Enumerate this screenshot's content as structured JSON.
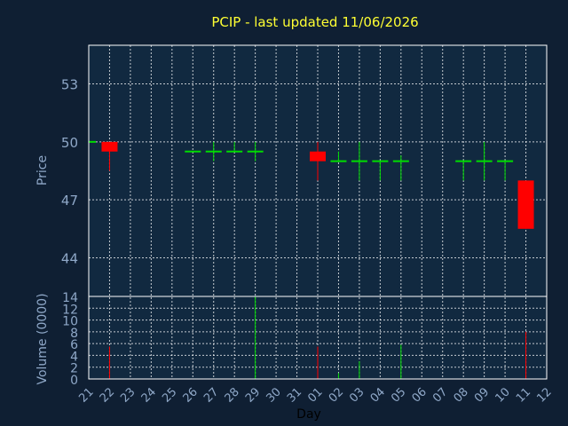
{
  "chart_data": {
    "type": "candlestick",
    "title": "PCIP - last updated 11/06/2026",
    "xlabel": "Day",
    "price_axis": {
      "label": "Price",
      "ylim": [
        42,
        55
      ],
      "ticks": [
        44,
        47,
        50,
        53
      ]
    },
    "volume_axis": {
      "label": "Volume (0000)",
      "ylim": [
        0,
        14
      ],
      "ticks": [
        0,
        2,
        4,
        6,
        8,
        10,
        12,
        14
      ]
    },
    "x_ticks": [
      "21",
      "22",
      "23",
      "24",
      "25",
      "26",
      "27",
      "28",
      "29",
      "30",
      "31",
      "01",
      "02",
      "03",
      "04",
      "05",
      "06",
      "07",
      "08",
      "09",
      "10",
      "11",
      "12"
    ],
    "grid": true,
    "colors": {
      "up": "#00dd00",
      "down": "#ff0000",
      "title": "#ffff33",
      "axis_text": "#8fa8c8",
      "background": "#0f1f33",
      "plot": "#112940"
    },
    "candles": [
      {
        "day": "21",
        "open": 50,
        "high": 50,
        "low": 50,
        "close": 50,
        "volume": 0
      },
      {
        "day": "22",
        "open": 50,
        "high": 50,
        "low": 48.5,
        "close": 49.5,
        "volume": 5.5
      },
      {
        "day": "26",
        "open": 49.5,
        "high": 49.5,
        "low": 49.5,
        "close": 49.5,
        "volume": 0
      },
      {
        "day": "27",
        "open": 49.5,
        "high": 50,
        "low": 49,
        "close": 49.5,
        "volume": 0
      },
      {
        "day": "28",
        "open": 49.5,
        "high": 50,
        "low": 49.5,
        "close": 49.5,
        "volume": 0
      },
      {
        "day": "29",
        "open": 49.5,
        "high": 50,
        "low": 49,
        "close": 49.5,
        "volume": 14
      },
      {
        "day": "01",
        "open": 49.5,
        "high": 50,
        "low": 48,
        "close": 49,
        "volume": 5.5
      },
      {
        "day": "02",
        "open": 49,
        "high": 49.5,
        "low": 49,
        "close": 49,
        "volume": 1
      },
      {
        "day": "03",
        "open": 49,
        "high": 50,
        "low": 48,
        "close": 49,
        "volume": 3
      },
      {
        "day": "04",
        "open": 49,
        "high": 49,
        "low": 48,
        "close": 49,
        "volume": 0
      },
      {
        "day": "05",
        "open": 49,
        "high": 49.3,
        "low": 48,
        "close": 49,
        "volume": 5.8
      },
      {
        "day": "08",
        "open": 49,
        "high": 49,
        "low": 48,
        "close": 49,
        "volume": 0
      },
      {
        "day": "09",
        "open": 49,
        "high": 50,
        "low": 48,
        "close": 49,
        "volume": 0
      },
      {
        "day": "10",
        "open": 49,
        "high": 49,
        "low": 48,
        "close": 49,
        "volume": 0
      },
      {
        "day": "11",
        "open": 48,
        "high": 48,
        "low": 45.5,
        "close": 45.5,
        "volume": 8
      }
    ]
  }
}
